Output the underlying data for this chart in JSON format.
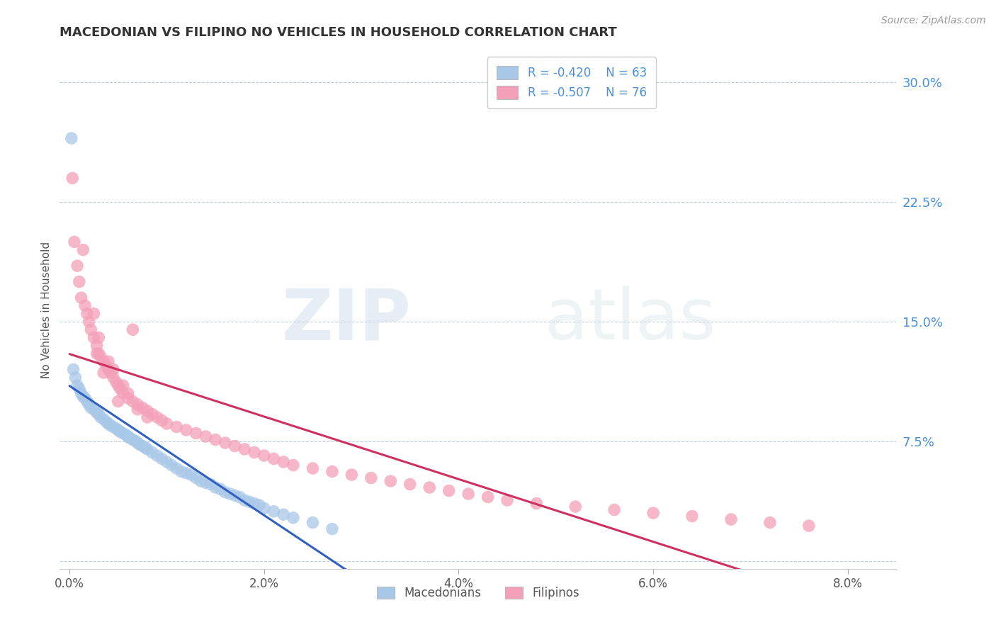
{
  "title": "MACEDONIAN VS FILIPINO NO VEHICLES IN HOUSEHOLD CORRELATION CHART",
  "source": "Source: ZipAtlas.com",
  "ylabel": "No Vehicles in Household",
  "x_ticks": [
    0.0,
    2.0,
    4.0,
    6.0,
    8.0
  ],
  "y_ticks": [
    0.0,
    7.5,
    15.0,
    22.5,
    30.0
  ],
  "y_tick_labels": [
    "",
    "7.5%",
    "15.0%",
    "22.5%",
    "30.0%"
  ],
  "xlim": [
    -0.1,
    8.5
  ],
  "ylim": [
    -0.5,
    32.0
  ],
  "legend_labels": [
    "Macedonians",
    "Filipinos"
  ],
  "macedonian_color": "#a8c8e8",
  "filipino_color": "#f4a0b8",
  "macedonian_line_color": "#3060c0",
  "filipino_line_color": "#d03060",
  "background_color": "#ffffff",
  "grid_color": "#c0ccd8",
  "macedonian_x": [
    0.02,
    0.04,
    0.06,
    0.08,
    0.1,
    0.12,
    0.14,
    0.16,
    0.18,
    0.2,
    0.22,
    0.25,
    0.28,
    0.3,
    0.32,
    0.35,
    0.38,
    0.4,
    0.42,
    0.45,
    0.48,
    0.5,
    0.52,
    0.55,
    0.58,
    0.6,
    0.62,
    0.65,
    0.68,
    0.7,
    0.72,
    0.75,
    0.78,
    0.8,
    0.85,
    0.9,
    0.95,
    1.0,
    1.05,
    1.1,
    1.15,
    1.2,
    1.25,
    1.3,
    1.35,
    1.4,
    1.45,
    1.5,
    1.55,
    1.6,
    1.65,
    1.7,
    1.75,
    1.8,
    1.85,
    1.9,
    1.95,
    2.0,
    2.1,
    2.2,
    2.3,
    2.5,
    2.7
  ],
  "macedonian_y": [
    26.5,
    12.0,
    11.5,
    11.0,
    10.8,
    10.5,
    10.3,
    10.2,
    10.0,
    9.8,
    9.6,
    9.5,
    9.3,
    9.2,
    9.0,
    8.9,
    8.7,
    8.6,
    8.5,
    8.4,
    8.3,
    8.2,
    8.1,
    8.0,
    7.9,
    7.8,
    7.7,
    7.6,
    7.5,
    7.4,
    7.3,
    7.2,
    7.1,
    7.0,
    6.8,
    6.6,
    6.4,
    6.2,
    6.0,
    5.8,
    5.6,
    5.5,
    5.4,
    5.2,
    5.0,
    4.9,
    4.8,
    4.6,
    4.5,
    4.3,
    4.2,
    4.1,
    4.0,
    3.8,
    3.7,
    3.6,
    3.5,
    3.3,
    3.1,
    2.9,
    2.7,
    2.4,
    2.0
  ],
  "filipino_x": [
    0.03,
    0.05,
    0.08,
    0.1,
    0.12,
    0.14,
    0.16,
    0.18,
    0.2,
    0.22,
    0.25,
    0.28,
    0.3,
    0.32,
    0.35,
    0.38,
    0.4,
    0.42,
    0.45,
    0.48,
    0.5,
    0.52,
    0.55,
    0.6,
    0.65,
    0.7,
    0.75,
    0.8,
    0.85,
    0.9,
    0.95,
    1.0,
    1.1,
    1.2,
    1.3,
    1.4,
    1.5,
    1.6,
    1.7,
    1.8,
    1.9,
    2.0,
    2.1,
    2.2,
    2.3,
    2.5,
    2.7,
    2.9,
    3.1,
    3.3,
    3.5,
    3.7,
    3.9,
    4.1,
    4.3,
    4.5,
    4.8,
    5.2,
    5.6,
    6.0,
    6.4,
    6.8,
    7.2,
    7.6,
    0.35,
    0.4,
    0.28,
    0.55,
    0.6,
    0.3,
    0.25,
    0.45,
    0.5,
    0.65,
    0.7,
    0.8
  ],
  "filipino_y": [
    24.0,
    20.0,
    18.5,
    17.5,
    16.5,
    19.5,
    16.0,
    15.5,
    15.0,
    14.5,
    14.0,
    13.5,
    13.0,
    12.8,
    12.5,
    12.2,
    12.0,
    11.8,
    11.5,
    11.2,
    11.0,
    10.8,
    10.5,
    10.2,
    10.0,
    9.8,
    9.6,
    9.4,
    9.2,
    9.0,
    8.8,
    8.6,
    8.4,
    8.2,
    8.0,
    7.8,
    7.6,
    7.4,
    7.2,
    7.0,
    6.8,
    6.6,
    6.4,
    6.2,
    6.0,
    5.8,
    5.6,
    5.4,
    5.2,
    5.0,
    4.8,
    4.6,
    4.4,
    4.2,
    4.0,
    3.8,
    3.6,
    3.4,
    3.2,
    3.0,
    2.8,
    2.6,
    2.4,
    2.2,
    11.8,
    12.5,
    13.0,
    11.0,
    10.5,
    14.0,
    15.5,
    12.0,
    10.0,
    14.5,
    9.5,
    9.0
  ]
}
